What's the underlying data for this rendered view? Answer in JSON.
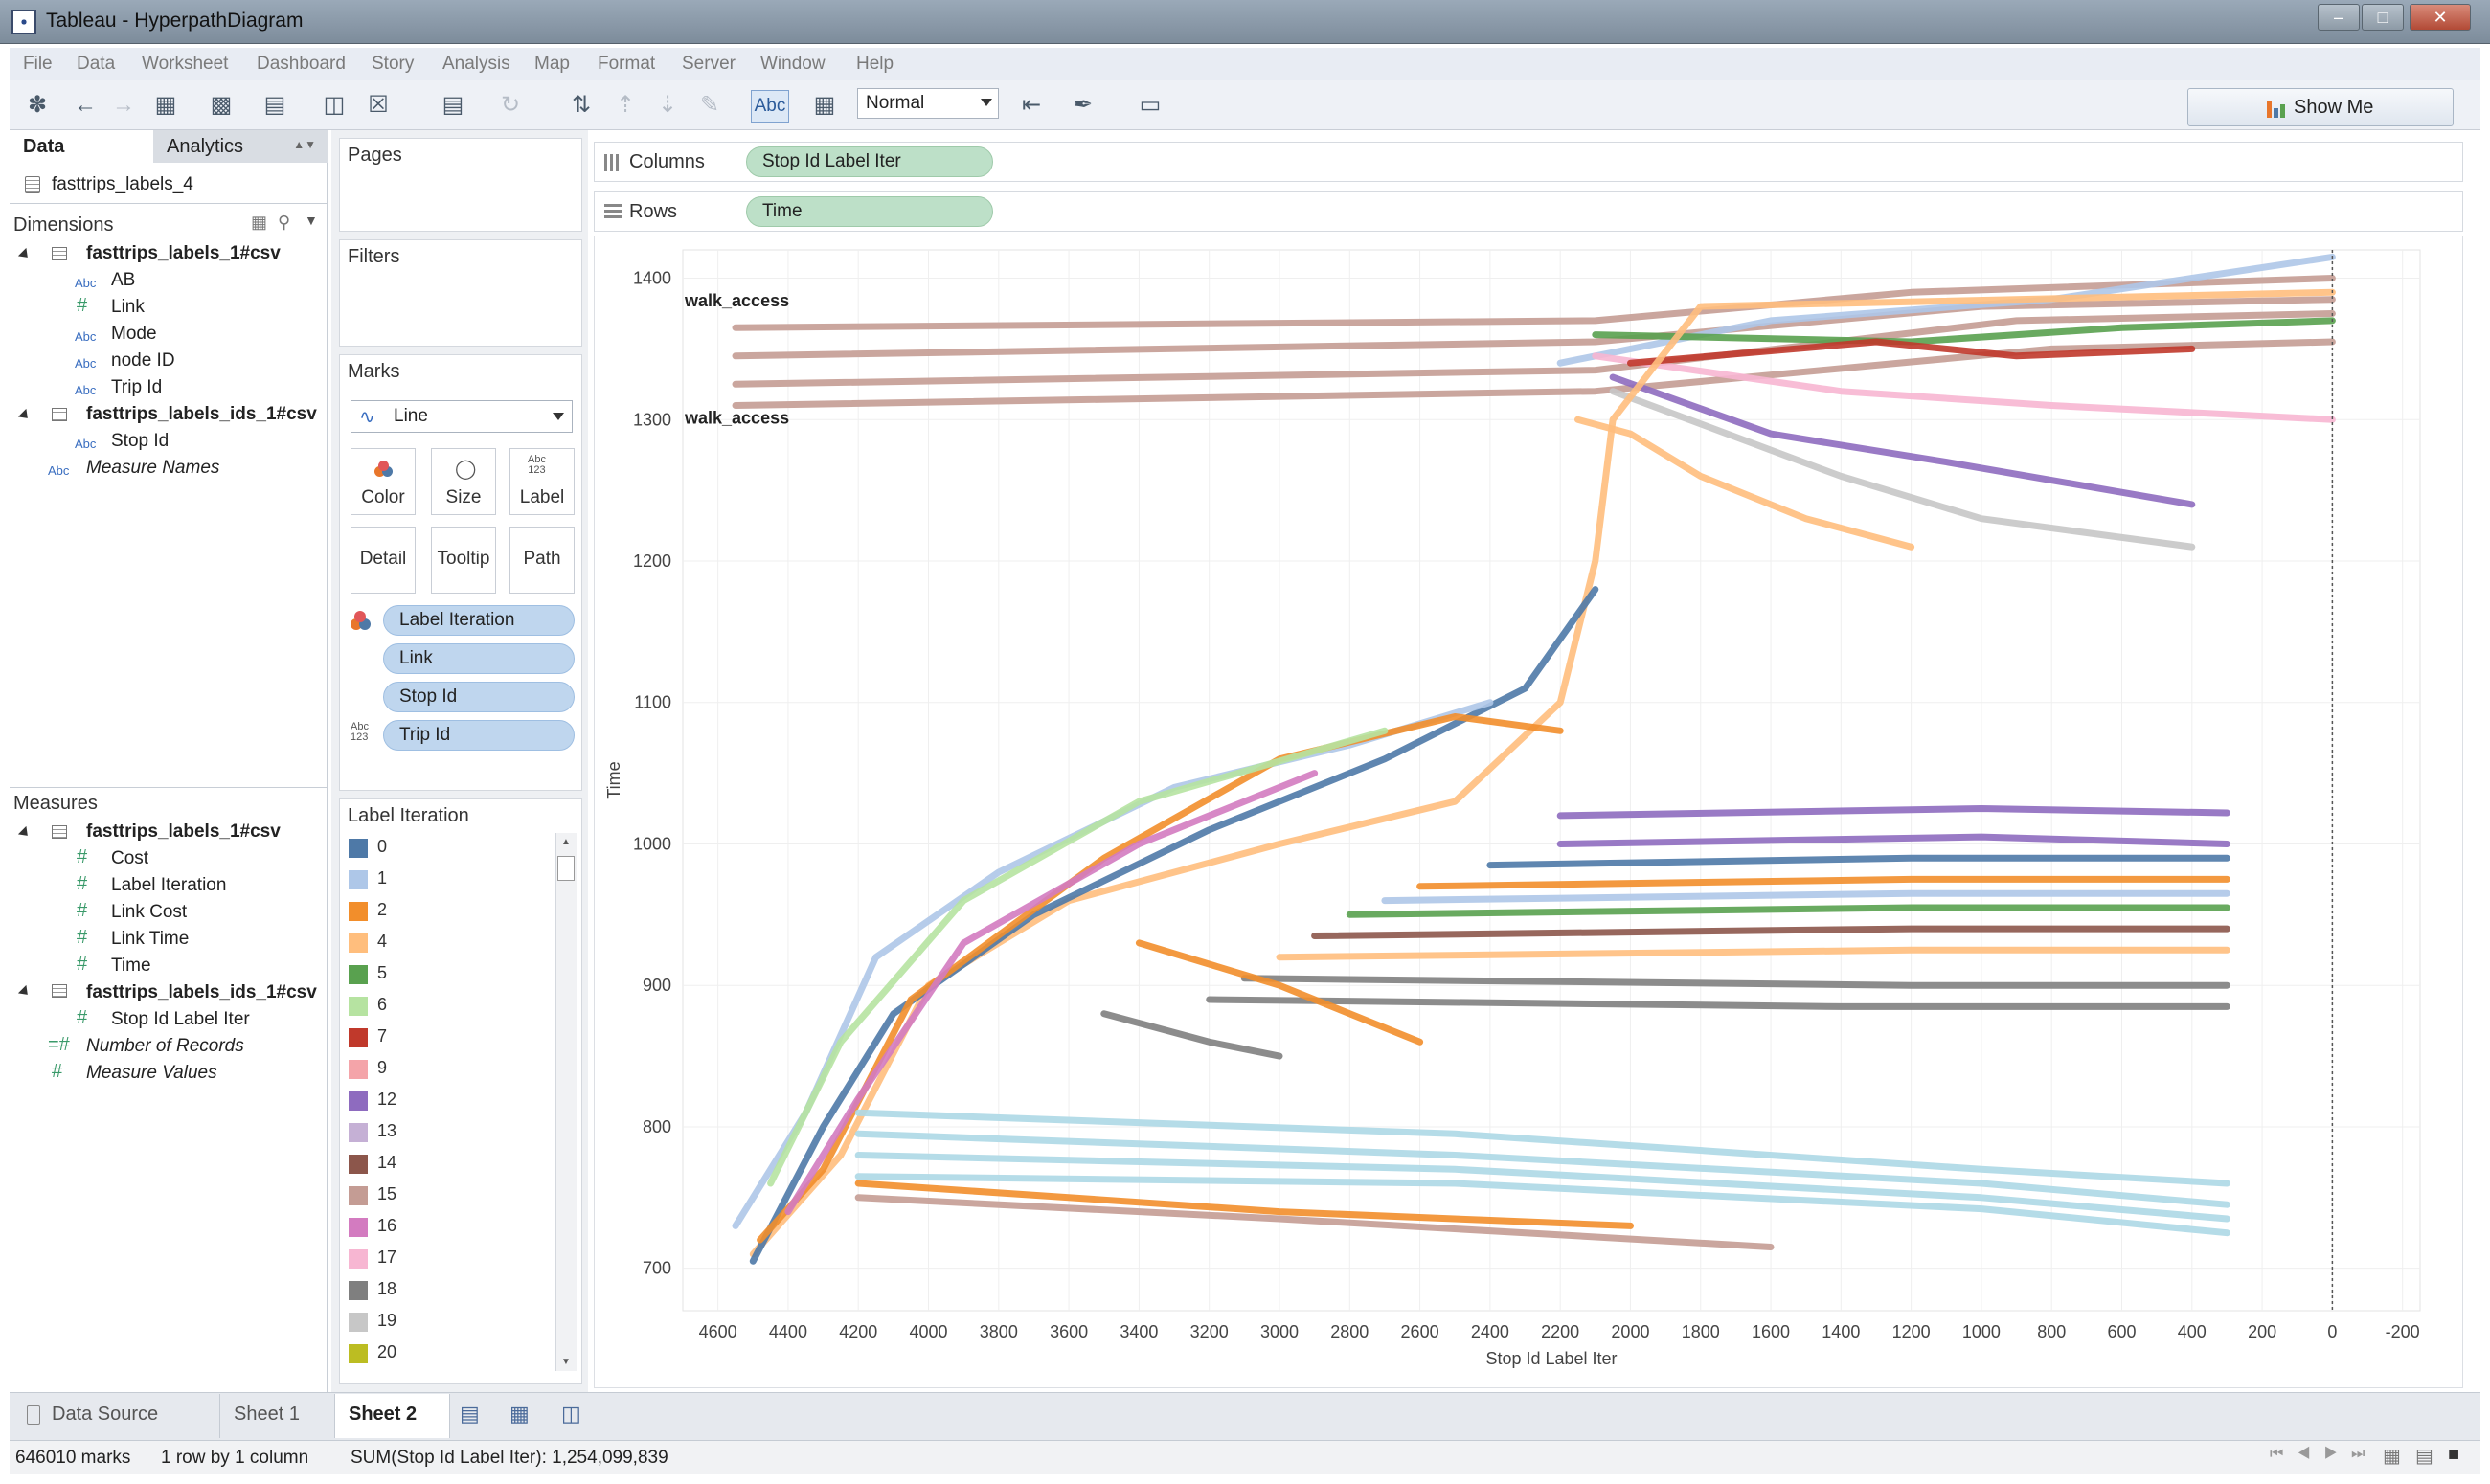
{
  "window": {
    "title": "Tableau - HyperpathDiagram"
  },
  "menu": [
    "File",
    "Data",
    "Worksheet",
    "Dashboard",
    "Story",
    "Analysis",
    "Map",
    "Format",
    "Server",
    "Window",
    "Help"
  ],
  "toolbar": {
    "view_mode": "Normal",
    "show_me_label": "Show Me",
    "abc_label": "Abc"
  },
  "left_pane": {
    "tabs": {
      "data": "Data",
      "analytics": "Analytics"
    },
    "datasource": "fasttrips_labels_4",
    "dimensions_header": "Dimensions",
    "dimension_groups": [
      {
        "name": "fasttrips_labels_1#csv",
        "fields": [
          {
            "type": "Abc",
            "name": "AB"
          },
          {
            "type": "#",
            "name": "Link"
          },
          {
            "type": "Abc",
            "name": "Mode"
          },
          {
            "type": "Abc",
            "name": "node ID"
          },
          {
            "type": "Abc",
            "name": "Trip Id"
          }
        ]
      },
      {
        "name": "fasttrips_labels_ids_1#csv",
        "fields": [
          {
            "type": "Abc",
            "name": "Stop Id"
          }
        ]
      }
    ],
    "dimension_extra": "Measure Names",
    "measures_header": "Measures",
    "measure_groups": [
      {
        "name": "fasttrips_labels_1#csv",
        "fields": [
          "Cost",
          "Label Iteration",
          "Link Cost",
          "Link Time",
          "Time"
        ]
      },
      {
        "name": "fasttrips_labels_ids_1#csv",
        "fields": [
          "Stop Id Label Iter"
        ]
      }
    ],
    "measure_extra": [
      "Number of Records",
      "Measure Values"
    ]
  },
  "cards": {
    "pages": "Pages",
    "filters": "Filters",
    "marks": "Marks",
    "mark_type": "Line",
    "buttons": {
      "color": "Color",
      "size": "Size",
      "label": "Label",
      "detail": "Detail",
      "tooltip": "Tooltip",
      "path": "Path"
    },
    "label_icon_text": "Abc\n123",
    "mark_fields": [
      "Label Iteration",
      "Link",
      "Stop Id",
      "Trip Id"
    ],
    "legend_title": "Label Iteration",
    "legend": [
      {
        "label": "0",
        "color": "#4e79a7"
      },
      {
        "label": "1",
        "color": "#aec7e8"
      },
      {
        "label": "2",
        "color": "#f28e2b"
      },
      {
        "label": "4",
        "color": "#ffbe7d"
      },
      {
        "label": "5",
        "color": "#59a14f"
      },
      {
        "label": "6",
        "color": "#b6e3a1"
      },
      {
        "label": "7",
        "color": "#c0392b"
      },
      {
        "label": "9",
        "color": "#f4a4a9"
      },
      {
        "label": "12",
        "color": "#8e6bbf"
      },
      {
        "label": "13",
        "color": "#c5b0d5"
      },
      {
        "label": "14",
        "color": "#8c564b"
      },
      {
        "label": "15",
        "color": "#c49c94"
      },
      {
        "label": "16",
        "color": "#d37bc0"
      },
      {
        "label": "17",
        "color": "#f7b6d2"
      },
      {
        "label": "18",
        "color": "#7f7f7f"
      },
      {
        "label": "19",
        "color": "#c7c7c7"
      },
      {
        "label": "20",
        "color": "#bcbd22"
      }
    ]
  },
  "shelves": {
    "columns_label": "Columns",
    "columns_pill": "Stop Id Label Iter",
    "rows_label": "Rows",
    "rows_pill": "Time"
  },
  "chart_data": {
    "type": "line",
    "xlabel": "Stop Id Label Iter",
    "ylabel": "Time",
    "xlim": [
      4700,
      -250
    ],
    "ylim": [
      670,
      1420
    ],
    "x_ticks": [
      4600,
      4400,
      4200,
      4000,
      3800,
      3600,
      3400,
      3200,
      3000,
      2800,
      2600,
      2400,
      2200,
      2000,
      1800,
      1600,
      1400,
      1200,
      1000,
      800,
      600,
      400,
      200,
      0,
      -200
    ],
    "y_ticks": [
      700,
      800,
      900,
      1000,
      1100,
      1200,
      1300,
      1400
    ],
    "reference_line_x": 0,
    "annotations": [
      {
        "text": "walk_access",
        "y": 1380
      },
      {
        "text": "walk_access",
        "y": 1297
      }
    ],
    "grid": true,
    "series": [
      {
        "color": "#c49c94",
        "points": [
          [
            4550,
            1365
          ],
          [
            2100,
            1370
          ],
          [
            1200,
            1390
          ],
          [
            0,
            1400
          ]
        ]
      },
      {
        "color": "#c49c94",
        "points": [
          [
            4550,
            1345
          ],
          [
            2100,
            1355
          ],
          [
            1000,
            1380
          ],
          [
            0,
            1385
          ]
        ]
      },
      {
        "color": "#c49c94",
        "points": [
          [
            4550,
            1325
          ],
          [
            2100,
            1335
          ],
          [
            900,
            1370
          ],
          [
            0,
            1375
          ]
        ]
      },
      {
        "color": "#c49c94",
        "points": [
          [
            4550,
            1310
          ],
          [
            2100,
            1320
          ],
          [
            800,
            1350
          ],
          [
            0,
            1355
          ]
        ]
      },
      {
        "color": "#aec7e8",
        "points": [
          [
            2200,
            1340
          ],
          [
            1600,
            1370
          ],
          [
            800,
            1385
          ],
          [
            0,
            1415
          ]
        ]
      },
      {
        "color": "#8e6bbf",
        "points": [
          [
            2050,
            1330
          ],
          [
            1600,
            1290
          ],
          [
            1100,
            1270
          ],
          [
            400,
            1240
          ]
        ]
      },
      {
        "color": "#c7c7c7",
        "points": [
          [
            2050,
            1320
          ],
          [
            1400,
            1260
          ],
          [
            1000,
            1230
          ],
          [
            400,
            1210
          ]
        ]
      },
      {
        "color": "#f7b6d2",
        "points": [
          [
            2100,
            1345
          ],
          [
            1400,
            1320
          ],
          [
            800,
            1310
          ],
          [
            0,
            1300
          ]
        ]
      },
      {
        "color": "#59a14f",
        "points": [
          [
            2100,
            1360
          ],
          [
            1200,
            1355
          ],
          [
            600,
            1365
          ],
          [
            0,
            1370
          ]
        ]
      },
      {
        "color": "#c0392b",
        "points": [
          [
            2000,
            1340
          ],
          [
            1300,
            1355
          ],
          [
            900,
            1345
          ],
          [
            400,
            1350
          ]
        ]
      },
      {
        "color": "#ffbe7d",
        "points": [
          [
            2150,
            1300
          ],
          [
            2000,
            1290
          ],
          [
            1800,
            1260
          ],
          [
            1500,
            1230
          ],
          [
            1200,
            1210
          ]
        ]
      },
      {
        "color": "#ffbe7d",
        "points": [
          [
            4500,
            710
          ],
          [
            4250,
            780
          ],
          [
            4000,
            900
          ],
          [
            3600,
            960
          ],
          [
            3000,
            1000
          ],
          [
            2500,
            1030
          ],
          [
            2200,
            1100
          ],
          [
            2100,
            1200
          ],
          [
            2050,
            1300
          ],
          [
            1800,
            1380
          ],
          [
            0,
            1390
          ]
        ]
      },
      {
        "color": "#4e79a7",
        "points": [
          [
            4500,
            705
          ],
          [
            4300,
            800
          ],
          [
            4100,
            880
          ],
          [
            3700,
            950
          ],
          [
            3200,
            1010
          ],
          [
            2700,
            1060
          ],
          [
            2300,
            1110
          ],
          [
            2100,
            1180
          ]
        ]
      },
      {
        "color": "#aec7e8",
        "points": [
          [
            4550,
            730
          ],
          [
            4350,
            810
          ],
          [
            4150,
            920
          ],
          [
            3800,
            980
          ],
          [
            3300,
            1040
          ],
          [
            2800,
            1070
          ],
          [
            2400,
            1100
          ]
        ]
      },
      {
        "color": "#f28e2b",
        "points": [
          [
            4480,
            720
          ],
          [
            4300,
            770
          ],
          [
            4050,
            890
          ],
          [
            3500,
            990
          ],
          [
            3000,
            1060
          ],
          [
            2500,
            1090
          ],
          [
            2200,
            1080
          ]
        ]
      },
      {
        "color": "#d37bc0",
        "points": [
          [
            4400,
            740
          ],
          [
            4200,
            820
          ],
          [
            3900,
            930
          ],
          [
            3400,
            1000
          ],
          [
            2900,
            1050
          ]
        ]
      },
      {
        "color": "#b6e3a1",
        "points": [
          [
            4450,
            760
          ],
          [
            4250,
            860
          ],
          [
            3900,
            960
          ],
          [
            3400,
            1030
          ],
          [
            2700,
            1080
          ]
        ]
      },
      {
        "color": "#8e6bbf",
        "points": [
          [
            2200,
            1020
          ],
          [
            1000,
            1025
          ],
          [
            300,
            1022
          ]
        ]
      },
      {
        "color": "#8e6bbf",
        "points": [
          [
            2200,
            1000
          ],
          [
            1000,
            1005
          ],
          [
            300,
            1000
          ]
        ]
      },
      {
        "color": "#4e79a7",
        "points": [
          [
            2400,
            985
          ],
          [
            1200,
            990
          ],
          [
            300,
            990
          ]
        ]
      },
      {
        "color": "#f28e2b",
        "points": [
          [
            2600,
            970
          ],
          [
            1200,
            975
          ],
          [
            300,
            975
          ]
        ]
      },
      {
        "color": "#aec7e8",
        "points": [
          [
            2700,
            960
          ],
          [
            1200,
            965
          ],
          [
            300,
            965
          ]
        ]
      },
      {
        "color": "#59a14f",
        "points": [
          [
            2800,
            950
          ],
          [
            1200,
            955
          ],
          [
            300,
            955
          ]
        ]
      },
      {
        "color": "#8c564b",
        "points": [
          [
            2900,
            935
          ],
          [
            1200,
            940
          ],
          [
            300,
            940
          ]
        ]
      },
      {
        "color": "#ffbe7d",
        "points": [
          [
            3000,
            920
          ],
          [
            1200,
            925
          ],
          [
            300,
            925
          ]
        ]
      },
      {
        "color": "#7f7f7f",
        "points": [
          [
            3100,
            905
          ],
          [
            1200,
            900
          ],
          [
            300,
            900
          ]
        ]
      },
      {
        "color": "#7f7f7f",
        "points": [
          [
            3200,
            890
          ],
          [
            1400,
            885
          ],
          [
            300,
            885
          ]
        ]
      },
      {
        "color": "#7f7f7f",
        "points": [
          [
            3500,
            880
          ],
          [
            3200,
            860
          ],
          [
            3000,
            850
          ]
        ]
      },
      {
        "color": "#f28e2b",
        "points": [
          [
            3400,
            930
          ],
          [
            3000,
            900
          ],
          [
            2600,
            860
          ]
        ]
      },
      {
        "color": "#add8e6",
        "points": [
          [
            4200,
            810
          ],
          [
            2500,
            795
          ],
          [
            1000,
            770
          ],
          [
            300,
            760
          ]
        ]
      },
      {
        "color": "#add8e6",
        "points": [
          [
            4200,
            795
          ],
          [
            2500,
            780
          ],
          [
            1000,
            760
          ],
          [
            300,
            745
          ]
        ]
      },
      {
        "color": "#add8e6",
        "points": [
          [
            4200,
            780
          ],
          [
            2500,
            770
          ],
          [
            1000,
            750
          ],
          [
            300,
            735
          ]
        ]
      },
      {
        "color": "#add8e6",
        "points": [
          [
            4200,
            765
          ],
          [
            2500,
            760
          ],
          [
            1000,
            742
          ],
          [
            300,
            725
          ]
        ]
      },
      {
        "color": "#f28e2b",
        "points": [
          [
            4200,
            760
          ],
          [
            3000,
            740
          ],
          [
            2000,
            730
          ]
        ]
      },
      {
        "color": "#c49c94",
        "points": [
          [
            4200,
            750
          ],
          [
            3000,
            735
          ],
          [
            1600,
            715
          ]
        ]
      }
    ]
  },
  "sheets": {
    "data_source": "Data Source",
    "sheet1": "Sheet 1",
    "sheet2": "Sheet 2"
  },
  "status": {
    "marks": "646010 marks",
    "dims": "1 row by 1 column",
    "sum": "SUM(Stop Id Label Iter): 1,254,099,839"
  }
}
